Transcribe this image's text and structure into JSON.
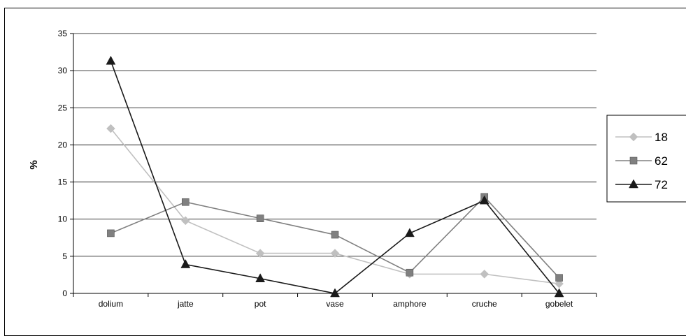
{
  "chart_data": {
    "type": "line",
    "title": "",
    "xlabel": "",
    "ylabel": "%",
    "ylim": [
      0,
      35
    ],
    "yticks": [
      0,
      5,
      10,
      15,
      20,
      25,
      30,
      35
    ],
    "grid": true,
    "legend_position": "right",
    "categories": [
      "dolium",
      "jatte",
      "pot",
      "vase",
      "amphore",
      "cruche",
      "gobelet"
    ],
    "series": [
      {
        "name": "18",
        "values": [
          22.2,
          9.8,
          5.4,
          5.4,
          2.6,
          2.6,
          1.3
        ],
        "color": "#c0c0c0",
        "marker": "diamond"
      },
      {
        "name": "62",
        "values": [
          8.1,
          12.3,
          10.1,
          7.9,
          2.8,
          13.0,
          2.1
        ],
        "color": "#808080",
        "marker": "square"
      },
      {
        "name": "72",
        "values": [
          31.3,
          3.9,
          2.0,
          0.0,
          8.1,
          12.5,
          0.0
        ],
        "color": "#1a1a1a",
        "marker": "triangle"
      }
    ]
  }
}
